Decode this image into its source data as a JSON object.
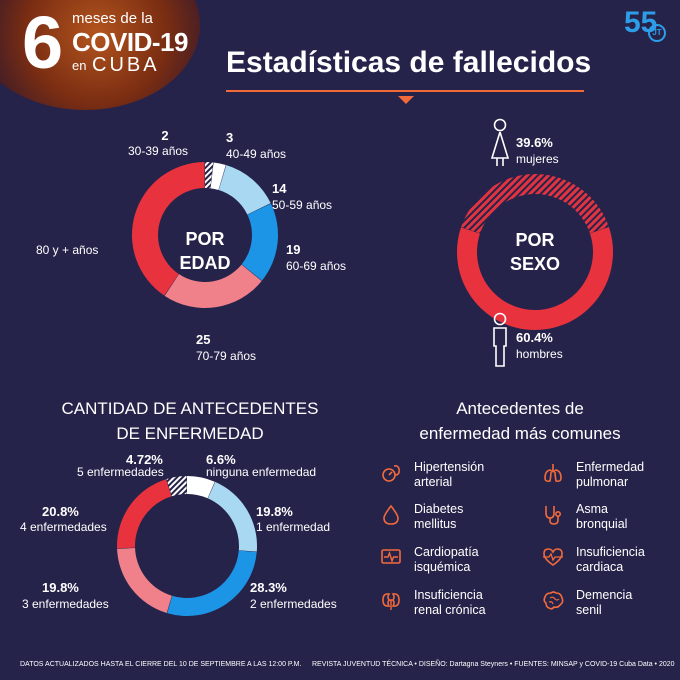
{
  "header": {
    "number": "6",
    "meses_de_la": "meses de la",
    "covid": "COVID-19",
    "en": "en",
    "cuba": "CUBA",
    "logo_text": "55",
    "logo_badge": "JT",
    "title": "Estadísticas de fallecidos"
  },
  "chart_data": [
    {
      "type": "pie",
      "center_label": [
        "POR",
        "EDAD"
      ],
      "categories": [
        "30-39 años",
        "40-49 años",
        "50-59 años",
        "60-69 años",
        "70-79 años",
        "80 y + años"
      ],
      "values": [
        2,
        3,
        14,
        19,
        25,
        null
      ],
      "labels": [
        {
          "value": "2",
          "text": "30-39 años"
        },
        {
          "value": "3",
          "text": "40-49 años"
        },
        {
          "value": "14",
          "text": "50-59 años"
        },
        {
          "value": "19",
          "text": "60-69 años"
        },
        {
          "value": "25",
          "text": "70-79 años"
        },
        {
          "value": "",
          "text": "80 y + años"
        }
      ],
      "colors": [
        "#ffffff",
        "#ffffff",
        "#a9d8f3",
        "#1c95e6",
        "#f0818a",
        "#e8333f"
      ]
    },
    {
      "type": "pie",
      "center_label": [
        "POR",
        "SEXO"
      ],
      "categories": [
        "mujeres",
        "hombres"
      ],
      "values": [
        39.6,
        60.4
      ],
      "labels": [
        {
          "value": "39.6%",
          "text": "mujeres"
        },
        {
          "value": "60.4%",
          "text": "hombres"
        }
      ],
      "colors": [
        "#e23340",
        "#e8333f"
      ]
    },
    {
      "type": "pie",
      "title": [
        "CANTIDAD DE ANTECEDENTES",
        "DE ENFERMEDAD"
      ],
      "categories": [
        "5 enfermedades",
        "ninguna enfermedad",
        "1 enfermedad",
        "2 enfermedades",
        "3 enfermedades",
        "4 enfermedades"
      ],
      "values": [
        4.72,
        6.6,
        19.8,
        28.3,
        19.8,
        20.8
      ],
      "labels": [
        {
          "value": "4.72%",
          "text": "5 enfermedades"
        },
        {
          "value": "6.6%",
          "text": "ninguna enfermedad"
        },
        {
          "value": "19.8%",
          "text": "1 enfermedad"
        },
        {
          "value": "28.3%",
          "text": "2 enfermedades"
        },
        {
          "value": "19.8%",
          "text": "3 enfermedades"
        },
        {
          "value": "20.8%",
          "text": "4 enfermedades"
        }
      ],
      "colors": [
        "#ffffff",
        "#ffffff",
        "#a9d8f3",
        "#1c95e6",
        "#f0818a",
        "#e8333f"
      ]
    }
  ],
  "antecedentes": {
    "title": [
      "Antecedentes de",
      "enfermedad más comunes"
    ],
    "items": [
      {
        "icon": "blood-pressure-icon",
        "lines": [
          "Hipertensión",
          "arterial"
        ]
      },
      {
        "icon": "lungs-icon",
        "lines": [
          "Enfermedad",
          "pulmonar"
        ]
      },
      {
        "icon": "blood-drop-icon",
        "lines": [
          "Diabetes",
          "mellitus"
        ]
      },
      {
        "icon": "stethoscope-icon",
        "lines": [
          "Asma",
          "bronquial"
        ]
      },
      {
        "icon": "ecg-monitor-icon",
        "lines": [
          "Cardiopatía",
          "isquémica"
        ]
      },
      {
        "icon": "heart-pulse-icon",
        "lines": [
          "Insuficiencia",
          "cardiaca"
        ]
      },
      {
        "icon": "kidneys-icon",
        "lines": [
          "Insuficiencia",
          "renal crónica"
        ]
      },
      {
        "icon": "brain-icon",
        "lines": [
          "Demencia",
          "senil"
        ]
      }
    ],
    "accent": "#f26a3a"
  },
  "footer": {
    "left": "DATOS ACTUALIZADOS HASTA EL CIERRE DEL 10 DE SEPTIEMBRE A LAS 12:00 P.M.",
    "right": "REVISTA JUVENTUD TÉCNICA • DISEÑO: Dartagna Steyners • FUENTES: MINSAP y COVID-19 Cuba Data • 2020"
  }
}
